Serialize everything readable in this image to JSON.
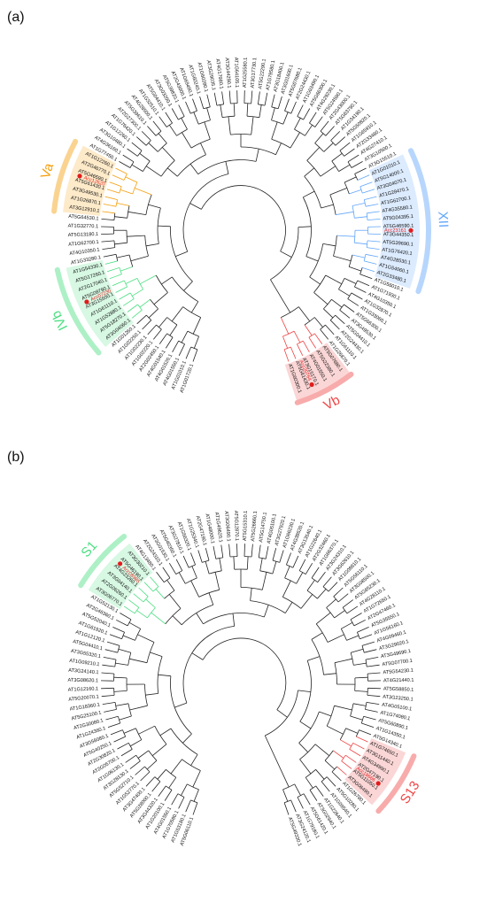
{
  "panels": [
    {
      "label": "(a)",
      "tips": [
        "AT1G01720.1",
        "AT1G01010.1",
        "AT4G01550.1",
        "AT4G01520.1",
        "AT4G01540.1",
        "AT2G02450.1",
        "AT1G02220.1",
        "AT1G02230.1",
        "AT1G02250.1",
        "AT1G01260.1",
        "AT3G04060.1",
        "AT5G18270.1",
        "AT1G52880.1",
        "AT1G61110.1",
        "AT3G15500.1",
        "AT5G08790.1",
        "AT2G17040.1",
        "AT5G17260.1",
        "AT1G54330.1",
        "AT1G33280.1",
        "AT4G10350.1",
        "AT1G62700.1",
        "AT5G13180.1",
        "AT1G32770.1",
        "AT5G64530.1",
        "AT3G12910.1",
        "AT1G26870.1",
        "AT3G49530.1",
        "AT5G61430.1",
        "AT5G46590.1",
        "AT2G46770.1",
        "AT1G12260.1",
        "AT1G77450.1",
        "AT4G36160.1",
        "AT3G10480.1",
        "AT1G12260.1",
        "AT1G76420.1",
        "AT2G27300.1",
        "AT5G39610.1",
        "AT4G28500.1",
        "AT1G32510.1",
        "AT5G04410.1",
        "AT3G03200.1",
        "AT5G39820.1",
        "AT2G43000.1",
        "AT1G69490.1",
        "AT1G60240.1",
        "AT1G60280.1",
        "AT3G29035.1",
        "AT4G17980.1",
        "AT3G44290.1",
        "AT1G64105.1",
        "AT1G25580.1",
        "AT3G17730.1",
        "AT5G22290.1",
        "AT1G79580.1",
        "AT3G18400.1",
        "AT3G01600.1",
        "AT5G07680.1",
        "AT2G24430.1",
        "AT1G03490.1",
        "AT5G66300.1",
        "AT4G29230.1",
        "AT5G24590.1",
        "AT2G43000.1",
        "AT5G63790.1",
        "AT1G34190.1",
        "AT5G50820.1",
        "AT1G65910.1",
        "AT2G33480.1",
        "AT4G27410.1",
        "AT3G10500.1",
        "AT3G15510.1",
        "AT1G01010.1",
        "AT5G14000.1",
        "AT3G04070.1",
        "AT1G28470.1",
        "AT1G62700.1",
        "AT4G35580.1",
        "AT5G04395.1",
        "AT5G46590.1",
        "AT3G44350.1",
        "AT5G39690.1",
        "AT1G76420.1",
        "AT4G28530.1",
        "AT1G54060.1",
        "AT2G33480.1",
        "AT1G56010.1",
        "AT1G71930.1",
        "AT4G10350.1",
        "AT1G32870.1",
        "AT1G33060.1",
        "AT5G66300.1",
        "AT3G49530.1",
        "AT5G04410.1",
        "AT2G24430.1",
        "AT1G61110.1",
        "AT1G26870.1",
        "AT5G07680.1",
        "AT5G22380.1",
        "AT4G01550.1",
        "AT3G15170.1",
        "AT5G61430.1",
        "AT1G60300.1"
      ],
      "highlights": [
        {
          "label": "Vb",
          "color": "#ef4444",
          "tag": "Acc20764"
        },
        {
          "label": "XII",
          "color": "#60a5fa",
          "tag": "Acc23161"
        },
        {
          "label": "IVb",
          "color": "#4ade80",
          "tag": "Acc07230"
        },
        {
          "label": "Va",
          "color": "#f59e0b",
          "tag": "Acc12620"
        }
      ]
    },
    {
      "label": "(b)",
      "tips": [
        "AT5G06110.1",
        "AT1G53180.1",
        "AT1G70580.1",
        "AT4G01550.1",
        "AT1G20100.1",
        "AT3G44320.1",
        "AT5G28000.1",
        "AT3G47400.1",
        "AT1G52770.1",
        "AT5G52710.1",
        "AT3G28130.1",
        "AT1G06130.1",
        "AT2G05700.1",
        "AT2G30820.1",
        "AT5G40250.1",
        "AT3G58080.1",
        "AT1G24360.1",
        "AT2G30080.1",
        "AT5G25100.1",
        "AT1G18360.1",
        "AT5G20070.1",
        "AT1G12160.1",
        "AT3G08620.1",
        "AT3G24140.1",
        "AT1G09210.1",
        "AT3G55320.1",
        "AT5G04410.1",
        "AT1G12120.1",
        "AT1G61920.1",
        "AT5G52040.1",
        "AT2G46360.1",
        "AT1G52130.1",
        "AT3G06770.1",
        "AT2G06260.1",
        "AT3G04140.1",
        "AT4G23260.1",
        "AT5G46190.1",
        "AT3G30210.1",
        "AT4G13480.1",
        "AT2G24310.1",
        "AT3G01530.1",
        "AT5G40350.1",
        "AT3G27810.1",
        "AT1G56320.1",
        "AT1G25340.1",
        "AT2G47190.1",
        "AT1G48000.1",
        "AT1G49620.1",
        "AT3G06490.1",
        "AT5G12870.1",
        "AT5G15310.1",
        "AT5G26660.1",
        "AT5G14750.1",
        "AT4G05100.1",
        "AT3G27920.1",
        "AT1G66230.1",
        "AT4G38620.1",
        "AT3G13540.1",
        "AT1G22640.1",
        "AT2G32460.1",
        "AT1G66370.1",
        "AT3G24310.1",
        "AT3G62610.1",
        "AT1G08810.1",
        "AT5G56110.1",
        "AT3G08500.1",
        "AT5G65230.1",
        "AT4G28110.1",
        "AT1G72650.1",
        "AT2G47460.1",
        "AT5G35550.1",
        "AT1G56160.1",
        "AT4G09460.1",
        "AT3G29020.1",
        "AT3G49690.1",
        "AT5G07700.1",
        "AT5G54230.1",
        "AT4G21440.1",
        "AT5G58850.1",
        "AT3G23250.1",
        "AT4G05100.1",
        "AT1G74080.1",
        "AT5G60890.1",
        "AT1G14350.1",
        "AT5G14340.1",
        "AT1G74650.1",
        "AT3G11440.1",
        "AT4G34990.1",
        "AT2G47190.1",
        "AT5G11050.1",
        "AT3G06490.1",
        "AT1G26780.1",
        "AT5G10280.1",
        "AT1G09540.1",
        "AT1G22640.1",
        "AT3G02940.1",
        "AT5G61420.1",
        "AT1G79180.1",
        "AT3G24120.1",
        "AT5G49330.1"
      ],
      "highlights": [
        {
          "label": "S13",
          "color": "#ef4444",
          "tag": "Acc18666"
        },
        {
          "label": "S1",
          "color": "#4ade80",
          "tag": "Acc08985"
        }
      ]
    }
  ]
}
